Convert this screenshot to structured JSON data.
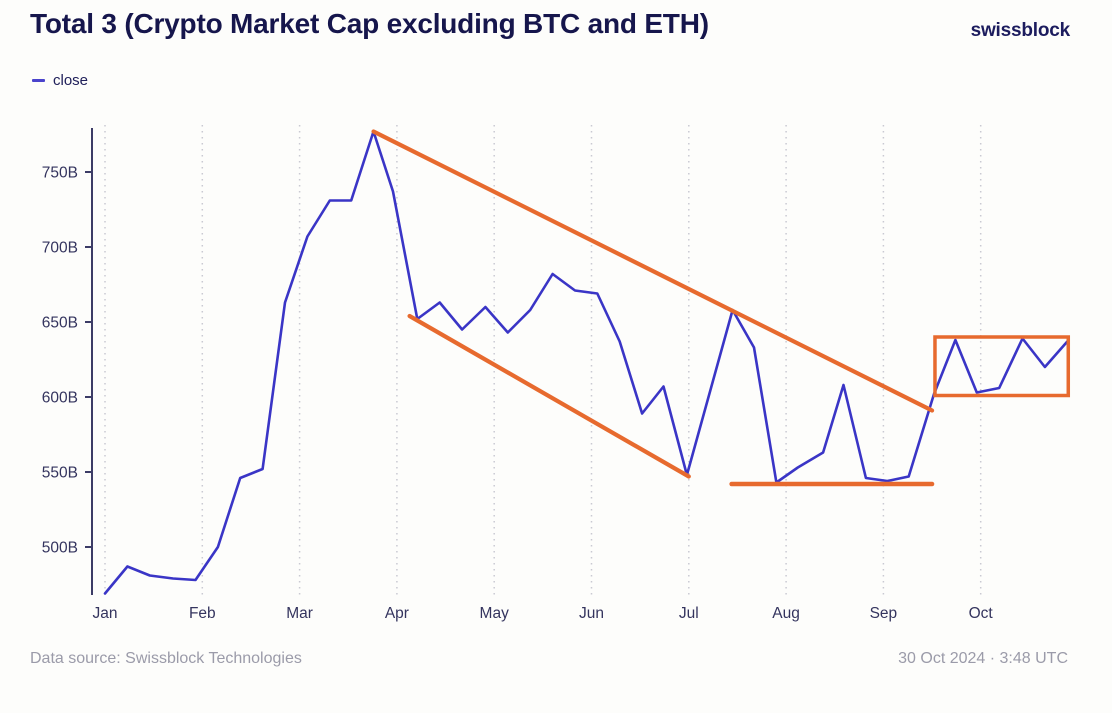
{
  "header": {
    "title": "Total 3 (Crypto Market Cap excluding BTC and ETH)",
    "brand": "swissblock"
  },
  "legend": {
    "label": "close"
  },
  "footer": {
    "source": "Data source: Swissblock Technologies",
    "timestamp": "30 Oct 2024 · 3:48 UTC"
  },
  "colors": {
    "line": "#3a35c6",
    "annotation": "#e76a2e",
    "axis": "#3c3c66",
    "gridline": "#c9c9d2",
    "axis_text": "#34345e",
    "title_text": "#16164c",
    "footer_text": "#9b9ba9"
  },
  "chart_data": {
    "type": "line",
    "title": "Total 3 (Crypto Market Cap excluding BTC and ETH)",
    "unit": "billions USD",
    "xlabel": "",
    "ylabel": "",
    "legend_position": "top-left",
    "grid": "vertical-dotted",
    "months": [
      "Jan",
      "Feb",
      "Mar",
      "Apr",
      "May",
      "Jun",
      "Jul",
      "Aug",
      "Sep",
      "Oct"
    ],
    "yticks": [
      500,
      550,
      600,
      650,
      700,
      750
    ],
    "ytick_suffix": "B",
    "ylim": [
      465,
      782
    ],
    "series": [
      {
        "name": "close",
        "color": "#3a35c6",
        "points": [
          [
            0.0,
            469
          ],
          [
            0.23,
            487
          ],
          [
            0.46,
            481
          ],
          [
            0.7,
            479
          ],
          [
            0.93,
            478
          ],
          [
            1.16,
            500
          ],
          [
            1.39,
            546
          ],
          [
            1.62,
            552
          ],
          [
            1.85,
            663
          ],
          [
            2.08,
            707
          ],
          [
            2.31,
            731
          ],
          [
            2.53,
            731
          ],
          [
            2.76,
            777
          ],
          [
            2.96,
            737
          ],
          [
            3.21,
            652
          ],
          [
            3.44,
            663
          ],
          [
            3.67,
            645
          ],
          [
            3.91,
            660
          ],
          [
            4.14,
            643
          ],
          [
            4.37,
            658
          ],
          [
            4.6,
            682
          ],
          [
            4.83,
            671
          ],
          [
            5.06,
            669
          ],
          [
            5.29,
            637
          ],
          [
            5.52,
            589
          ],
          [
            5.74,
            607
          ],
          [
            5.98,
            548
          ],
          [
            6.45,
            658
          ],
          [
            6.67,
            633
          ],
          [
            6.9,
            543
          ],
          [
            7.12,
            553
          ],
          [
            7.38,
            563
          ],
          [
            7.59,
            608
          ],
          [
            7.82,
            546
          ],
          [
            8.04,
            544
          ],
          [
            8.26,
            547
          ],
          [
            8.52,
            602
          ],
          [
            8.74,
            638
          ],
          [
            8.96,
            603
          ],
          [
            9.19,
            606
          ],
          [
            9.43,
            639
          ],
          [
            9.66,
            620
          ],
          [
            9.89,
            637
          ]
        ]
      }
    ],
    "annotations": {
      "channel_upper": {
        "from": [
          2.76,
          777
        ],
        "to": [
          8.5,
          591
        ],
        "color": "#e76a2e"
      },
      "channel_lower": {
        "from": [
          3.13,
          654
        ],
        "to": [
          6.0,
          547
        ],
        "color": "#e76a2e"
      },
      "support_line": {
        "value": 542,
        "x_from": 6.44,
        "x_to": 8.5,
        "color": "#e76a2e"
      },
      "range_box": {
        "x_from": 8.53,
        "x_to": 9.9,
        "value_low": 601,
        "value_high": 640,
        "color": "#e76a2e"
      }
    }
  }
}
